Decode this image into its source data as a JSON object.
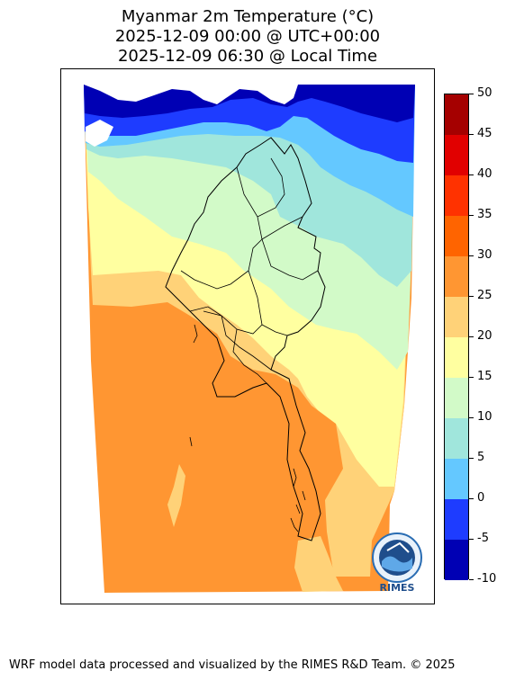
{
  "title": {
    "line1": "Myanmar 2m Temperature (°C)",
    "line2": "2025-12-09 00:00 @ UTC+00:00",
    "line3": "2025-12-09 06:30 @ Local Time"
  },
  "colorbar": {
    "levels": [
      {
        "label": "-10",
        "color": "#0000b4"
      },
      {
        "label": "-5",
        "color": "#1e3cff"
      },
      {
        "label": "0",
        "color": "#64c8ff"
      },
      {
        "label": "5",
        "color": "#a0e6dc"
      },
      {
        "label": "10",
        "color": "#d2fac8"
      },
      {
        "label": "15",
        "color": "#ffffa0"
      },
      {
        "label": "20",
        "color": "#ffd278"
      },
      {
        "label": "25",
        "color": "#ff9632"
      },
      {
        "label": "30",
        "color": "#ff6400"
      },
      {
        "label": "35",
        "color": "#ff3200"
      },
      {
        "label": "40",
        "color": "#e10000"
      },
      {
        "label": "45",
        "color": "#a50000"
      },
      {
        "label": "50",
        "color": null
      }
    ]
  },
  "logo": {
    "text": "RIMES",
    "color": "#1f4e8c"
  },
  "footer": "WRF model data processed and visualized by the RIMES R&D Team. © 2025"
}
